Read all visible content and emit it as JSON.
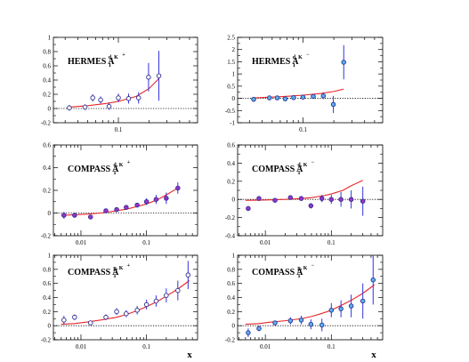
{
  "figure": {
    "x_axis_label": "x",
    "colors": {
      "fit_curve": "#e8262a",
      "error_bar": "#3333dd",
      "zero_line": "#000000",
      "marker_stroke_hermes": "#303090",
      "marker_fill_hermes": "#ffffff",
      "marker_fill_compass": "#9b30d0",
      "marker_fill_compass_p_kminus": "#55b0ee",
      "marker_fill_hermes_kminus": "#55aaff"
    }
  },
  "chart_data": [
    {
      "id": "hermes-d-kplus",
      "type": "scatter",
      "title": {
        "main": "HERMES A",
        "sup": "d, K",
        "charge": "+",
        "sub": "1"
      },
      "xscale": "log",
      "xlim": [
        0.023,
        0.6
      ],
      "ylim": [
        -0.2,
        1
      ],
      "yticks": [
        "-0.2",
        "0",
        "0.2",
        "0.4",
        "0.6",
        "0.8",
        "1"
      ],
      "ytick_values": [
        -0.2,
        0,
        0.2,
        0.4,
        0.6,
        0.8,
        1
      ],
      "xtick_labels": [
        {
          "value": 0.1,
          "label": "0.1"
        }
      ],
      "marker": "open-circle",
      "x": [
        0.033,
        0.047,
        0.056,
        0.067,
        0.081,
        0.1,
        0.126,
        0.158,
        0.198,
        0.25
      ],
      "y": [
        0.01,
        0.02,
        0.15,
        0.12,
        0.03,
        0.15,
        0.14,
        0.15,
        0.44,
        0.46
      ],
      "yerr": [
        0.04,
        0.04,
        0.05,
        0.05,
        0.05,
        0.06,
        0.07,
        0.08,
        0.2,
        0.35
      ],
      "fit": {
        "x": [
          0.033,
          0.05,
          0.075,
          0.1,
          0.15,
          0.2,
          0.25
        ],
        "y": [
          0.02,
          0.04,
          0.07,
          0.1,
          0.17,
          0.28,
          0.42
        ]
      }
    },
    {
      "id": "hermes-d-kminus",
      "type": "scatter",
      "title": {
        "main": "HERMES A",
        "sup": "d, K",
        "charge": "−",
        "sub": "1"
      },
      "xscale": "log",
      "xlim": [
        0.023,
        0.6
      ],
      "ylim": [
        -1,
        2.5
      ],
      "yticks": [
        "-1",
        "-0.5",
        "0",
        "0.5",
        "1",
        "1.5",
        "2",
        "2.5"
      ],
      "ytick_values": [
        -1,
        -0.5,
        0,
        0.5,
        1,
        1.5,
        2,
        2.5
      ],
      "xtick_labels": [
        {
          "value": 0.1,
          "label": "0.1"
        }
      ],
      "marker": "filled-circle-light",
      "x": [
        0.033,
        0.047,
        0.056,
        0.067,
        0.081,
        0.1,
        0.126,
        0.158,
        0.198,
        0.25
      ],
      "y": [
        -0.04,
        0.02,
        0.02,
        -0.02,
        0.03,
        0.05,
        0.08,
        0.1,
        -0.25,
        1.48
      ],
      "yerr": [
        0.04,
        0.05,
        0.06,
        0.06,
        0.07,
        0.08,
        0.1,
        0.13,
        0.35,
        0.7
      ],
      "fit": {
        "x": [
          0.033,
          0.05,
          0.075,
          0.1,
          0.15,
          0.2,
          0.25
        ],
        "y": [
          0.02,
          0.05,
          0.09,
          0.13,
          0.2,
          0.28,
          0.38
        ]
      }
    },
    {
      "id": "compass-d-kplus",
      "type": "scatter",
      "title": {
        "main": "COMPASS A",
        "sup": "d, K",
        "charge": "+",
        "sub": "1"
      },
      "xscale": "log",
      "xlim": [
        0.0038,
        0.6
      ],
      "ylim": [
        -0.2,
        0.6
      ],
      "yticks": [
        "-0.2",
        "0",
        "0.2",
        "0.4",
        "0.6"
      ],
      "ytick_values": [
        -0.2,
        0,
        0.2,
        0.4,
        0.6
      ],
      "xtick_labels": [
        {
          "value": 0.01,
          "label": "0.01"
        },
        {
          "value": 0.1,
          "label": "0.1"
        }
      ],
      "marker": "filled-circle-purple",
      "x": [
        0.0055,
        0.008,
        0.014,
        0.024,
        0.035,
        0.049,
        0.072,
        0.1,
        0.14,
        0.2,
        0.3
      ],
      "y": [
        -0.02,
        -0.02,
        -0.035,
        0.02,
        0.03,
        0.05,
        0.07,
        0.1,
        0.12,
        0.13,
        0.22
      ],
      "yerr": [
        0.03,
        0.01,
        0.005,
        0.02,
        0.02,
        0.02,
        0.02,
        0.03,
        0.04,
        0.05,
        0.05
      ],
      "fit": {
        "x": [
          0.005,
          0.008,
          0.012,
          0.02,
          0.035,
          0.05,
          0.075,
          0.1,
          0.15,
          0.2,
          0.3
        ],
        "y": [
          -0.02,
          -0.015,
          -0.01,
          0.0,
          0.02,
          0.035,
          0.06,
          0.08,
          0.12,
          0.16,
          0.22
        ]
      }
    },
    {
      "id": "compass-d-kminus",
      "type": "scatter",
      "title": {
        "main": "COMPASS A",
        "sup": "d, K",
        "charge": "−",
        "sub": "1"
      },
      "xscale": "log",
      "xlim": [
        0.0038,
        0.6
      ],
      "ylim": [
        -0.4,
        0.6
      ],
      "yticks": [
        "-0.4",
        "-0.2",
        "0",
        "0.2",
        "0.4",
        "0.6"
      ],
      "ytick_values": [
        -0.4,
        -0.2,
        0,
        0.2,
        0.4,
        0.6
      ],
      "xtick_labels": [
        {
          "value": 0.01,
          "label": "0.01"
        },
        {
          "value": 0.1,
          "label": "0.1"
        }
      ],
      "marker": "filled-circle-purple",
      "x": [
        0.0055,
        0.008,
        0.014,
        0.024,
        0.035,
        0.049,
        0.072,
        0.1,
        0.14,
        0.2,
        0.3
      ],
      "y": [
        -0.1,
        0.01,
        -0.01,
        0.02,
        0.01,
        -0.07,
        0.01,
        0.0,
        0.0,
        0.0,
        -0.02
      ],
      "yerr": [
        0.02,
        0.01,
        0.01,
        0.02,
        0.02,
        0.03,
        0.04,
        0.05,
        0.08,
        0.1,
        0.16
      ],
      "fit": {
        "x": [
          0.005,
          0.008,
          0.012,
          0.02,
          0.035,
          0.05,
          0.075,
          0.1,
          0.15,
          0.2,
          0.3
        ],
        "y": [
          -0.01,
          -0.008,
          -0.005,
          0.0,
          0.01,
          0.02,
          0.04,
          0.06,
          0.1,
          0.15,
          0.21
        ]
      }
    },
    {
      "id": "compass-p-kplus",
      "type": "scatter",
      "title": {
        "main": "COMPASS A",
        "sup": "p, K",
        "charge": "+",
        "sub": "1"
      },
      "xscale": "log",
      "xlim": [
        0.0038,
        0.6
      ],
      "ylim": [
        -0.2,
        1
      ],
      "yticks": [
        "-0.2",
        "0",
        "0.2",
        "0.4",
        "0.6",
        "0.8",
        "1"
      ],
      "ytick_values": [
        -0.2,
        0,
        0.2,
        0.4,
        0.6,
        0.8,
        1
      ],
      "xtick_labels": [
        {
          "value": 0.01,
          "label": "0.01"
        },
        {
          "value": 0.1,
          "label": "0.1"
        }
      ],
      "marker": "open-circle",
      "x": [
        0.0055,
        0.008,
        0.014,
        0.024,
        0.035,
        0.049,
        0.072,
        0.1,
        0.14,
        0.2,
        0.3,
        0.43
      ],
      "y": [
        0.08,
        0.12,
        0.04,
        0.12,
        0.2,
        0.17,
        0.22,
        0.3,
        0.35,
        0.43,
        0.5,
        0.72
      ],
      "yerr": [
        0.06,
        0.04,
        0.03,
        0.04,
        0.05,
        0.05,
        0.06,
        0.07,
        0.08,
        0.1,
        0.14,
        0.2
      ],
      "fit": {
        "x": [
          0.005,
          0.008,
          0.012,
          0.02,
          0.035,
          0.05,
          0.075,
          0.1,
          0.15,
          0.2,
          0.3,
          0.45
        ],
        "y": [
          0.02,
          0.03,
          0.05,
          0.08,
          0.12,
          0.16,
          0.22,
          0.27,
          0.35,
          0.42,
          0.52,
          0.64
        ]
      }
    },
    {
      "id": "compass-p-kminus",
      "type": "scatter",
      "title": {
        "main": "COMPASS A",
        "sup": "p, K",
        "charge": "−",
        "sub": "1"
      },
      "xscale": "log",
      "xlim": [
        0.0038,
        0.6
      ],
      "ylim": [
        -0.2,
        1
      ],
      "yticks": [
        "-0.2",
        "0",
        "0.2",
        "0.4",
        "0.6",
        "0.8",
        "1"
      ],
      "ytick_values": [
        -0.2,
        0,
        0.2,
        0.4,
        0.6,
        0.8,
        1
      ],
      "xtick_labels": [
        {
          "value": 0.01,
          "label": "0.01"
        },
        {
          "value": 0.1,
          "label": "0.1"
        }
      ],
      "marker": "filled-circle-light",
      "x": [
        0.0055,
        0.008,
        0.014,
        0.024,
        0.035,
        0.049,
        0.072,
        0.1,
        0.14,
        0.2,
        0.3,
        0.43
      ],
      "y": [
        -0.1,
        -0.04,
        0.04,
        0.07,
        0.08,
        0.02,
        0.01,
        0.22,
        0.24,
        0.28,
        0.35,
        0.65
      ],
      "yerr": [
        0.06,
        0.04,
        0.03,
        0.05,
        0.06,
        0.07,
        0.09,
        0.1,
        0.12,
        0.16,
        0.25,
        0.35
      ],
      "fit": {
        "x": [
          0.005,
          0.008,
          0.012,
          0.02,
          0.035,
          0.05,
          0.075,
          0.1,
          0.15,
          0.2,
          0.3,
          0.45
        ],
        "y": [
          0.02,
          0.03,
          0.05,
          0.07,
          0.1,
          0.13,
          0.18,
          0.22,
          0.3,
          0.36,
          0.46,
          0.58
        ]
      }
    }
  ]
}
